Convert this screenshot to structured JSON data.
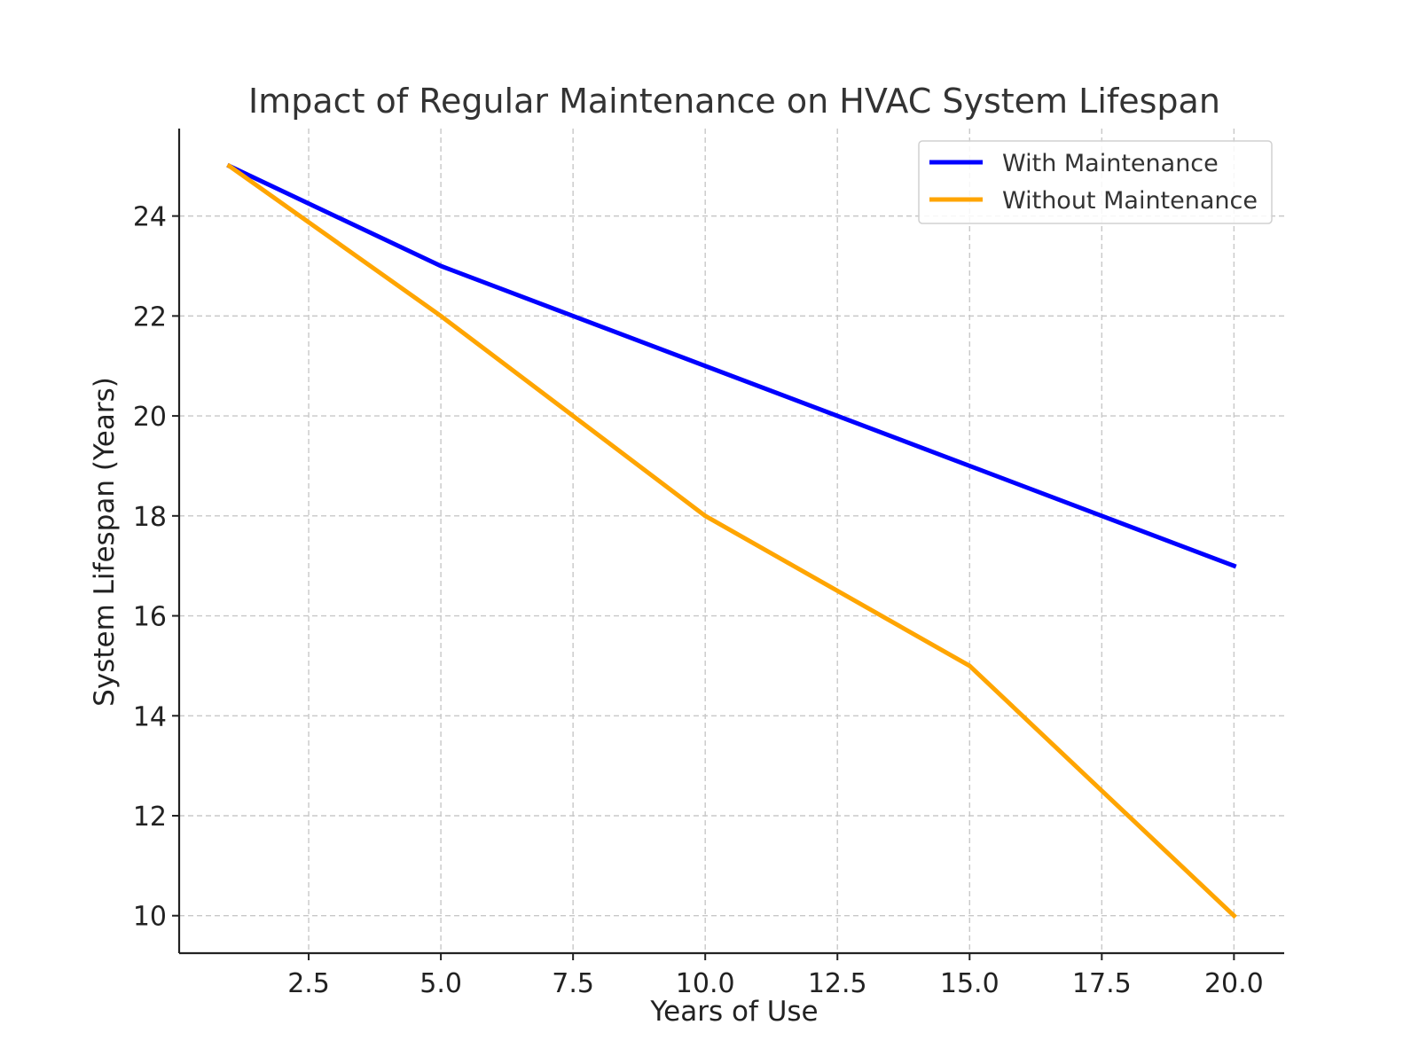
{
  "chart_data": {
    "type": "line",
    "title": "Impact of Regular Maintenance on HVAC System Lifespan",
    "xlabel": "Years of Use",
    "ylabel": "System Lifespan (Years)",
    "x": [
      1,
      5,
      10,
      15,
      20
    ],
    "series": [
      {
        "name": "With Maintenance",
        "color": "#0000ff",
        "values": [
          25,
          23,
          21,
          19,
          17
        ]
      },
      {
        "name": "Without Maintenance",
        "color": "#ffa500",
        "values": [
          25,
          22,
          18,
          15,
          10
        ]
      }
    ],
    "xlim": [
      0.05,
      20.95
    ],
    "ylim": [
      9.25,
      25.75
    ],
    "xticks": [
      2.5,
      5.0,
      7.5,
      10.0,
      12.5,
      15.0,
      17.5,
      20.0
    ],
    "xtick_labels": [
      "2.5",
      "5.0",
      "7.5",
      "10.0",
      "12.5",
      "15.0",
      "17.5",
      "20.0"
    ],
    "yticks": [
      10,
      12,
      14,
      16,
      18,
      20,
      22,
      24
    ],
    "ytick_labels": [
      "10",
      "12",
      "14",
      "16",
      "18",
      "20",
      "22",
      "24"
    ],
    "grid": true,
    "legend_position": "top-right"
  }
}
